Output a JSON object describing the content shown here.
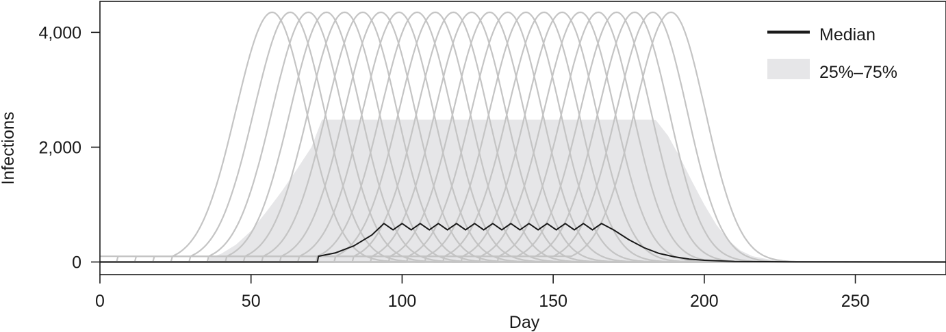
{
  "chart_data": {
    "type": "line",
    "xlabel": "Day",
    "ylabel": "Infections",
    "xlim": [
      0,
      280
    ],
    "ylim": [
      -220,
      4540
    ],
    "x_ticks": [
      0,
      50,
      100,
      150,
      200,
      250
    ],
    "x_tick_labels": [
      "0",
      "50",
      "100",
      "150",
      "200",
      "250"
    ],
    "y_ticks": [
      0,
      2000,
      4000
    ],
    "y_tick_labels": [
      "0",
      "2,000",
      "4,000"
    ],
    "grid": false,
    "legend_position": "top-right",
    "legend": [
      {
        "label": "Median",
        "kind": "line",
        "color": "#1a1a1a"
      },
      {
        "label": "25%–75%",
        "kind": "band",
        "color": "#e6e6e8"
      }
    ],
    "scenarios": {
      "count": 23,
      "first_start_day": 0,
      "start_day_step": 6,
      "peak_offset_days": 57,
      "peak_value": 4350,
      "rise_width_days": 17,
      "fall_width_days": 16,
      "initial_value": 100,
      "color": "#c4c4c4"
    },
    "series": [
      {
        "name": "Median",
        "color": "#1a1a1a",
        "points": [
          [
            0,
            0
          ],
          [
            72,
            0
          ],
          [
            72.3,
            100
          ],
          [
            78,
            160
          ],
          [
            84,
            280
          ],
          [
            90,
            470
          ],
          [
            94,
            670
          ],
          [
            97,
            560
          ],
          [
            100,
            670
          ],
          [
            103,
            560
          ],
          [
            106,
            670
          ],
          [
            109,
            560
          ],
          [
            112,
            670
          ],
          [
            115,
            560
          ],
          [
            118,
            670
          ],
          [
            121,
            560
          ],
          [
            124,
            670
          ],
          [
            127,
            560
          ],
          [
            130,
            670
          ],
          [
            133,
            560
          ],
          [
            136,
            670
          ],
          [
            139,
            560
          ],
          [
            142,
            670
          ],
          [
            145,
            560
          ],
          [
            148,
            670
          ],
          [
            151,
            560
          ],
          [
            154,
            670
          ],
          [
            157,
            560
          ],
          [
            160,
            670
          ],
          [
            163,
            560
          ],
          [
            166,
            670
          ],
          [
            170,
            560
          ],
          [
            175,
            390
          ],
          [
            180,
            250
          ],
          [
            185,
            150
          ],
          [
            190,
            90
          ],
          [
            195,
            50
          ],
          [
            200,
            30
          ],
          [
            210,
            10
          ],
          [
            230,
            2
          ],
          [
            280,
            0
          ]
        ]
      },
      {
        "name": "25%–75%",
        "type": "area",
        "color": "#e6e6e8",
        "upper": [
          [
            36,
            70
          ],
          [
            40,
            140
          ],
          [
            45,
            300
          ],
          [
            50,
            540
          ],
          [
            55,
            870
          ],
          [
            60,
            1220
          ],
          [
            65,
            1600
          ],
          [
            70,
            2000
          ],
          [
            73.5,
            2480
          ],
          [
            79.5,
            2480
          ],
          [
            85.5,
            2480
          ],
          [
            91.5,
            2480
          ],
          [
            97.5,
            2480
          ],
          [
            103.5,
            2480
          ],
          [
            109.5,
            2480
          ],
          [
            115.5,
            2480
          ],
          [
            121.5,
            2480
          ],
          [
            127.5,
            2480
          ],
          [
            133.5,
            2480
          ],
          [
            139.5,
            2480
          ],
          [
            145.5,
            2480
          ],
          [
            151.5,
            2480
          ],
          [
            157.5,
            2480
          ],
          [
            163.5,
            2480
          ],
          [
            169.5,
            2480
          ],
          [
            175.5,
            2480
          ],
          [
            181.5,
            2480
          ],
          [
            184,
            2470
          ],
          [
            188,
            2200
          ],
          [
            192,
            1820
          ],
          [
            196,
            1400
          ],
          [
            200,
            1000
          ],
          [
            204,
            650
          ],
          [
            208,
            380
          ],
          [
            212,
            200
          ],
          [
            216,
            100
          ],
          [
            222,
            40
          ],
          [
            232,
            10
          ],
          [
            245,
            0
          ]
        ],
        "lower": [
          [
            36,
            0
          ],
          [
            245,
            0
          ]
        ]
      }
    ]
  }
}
